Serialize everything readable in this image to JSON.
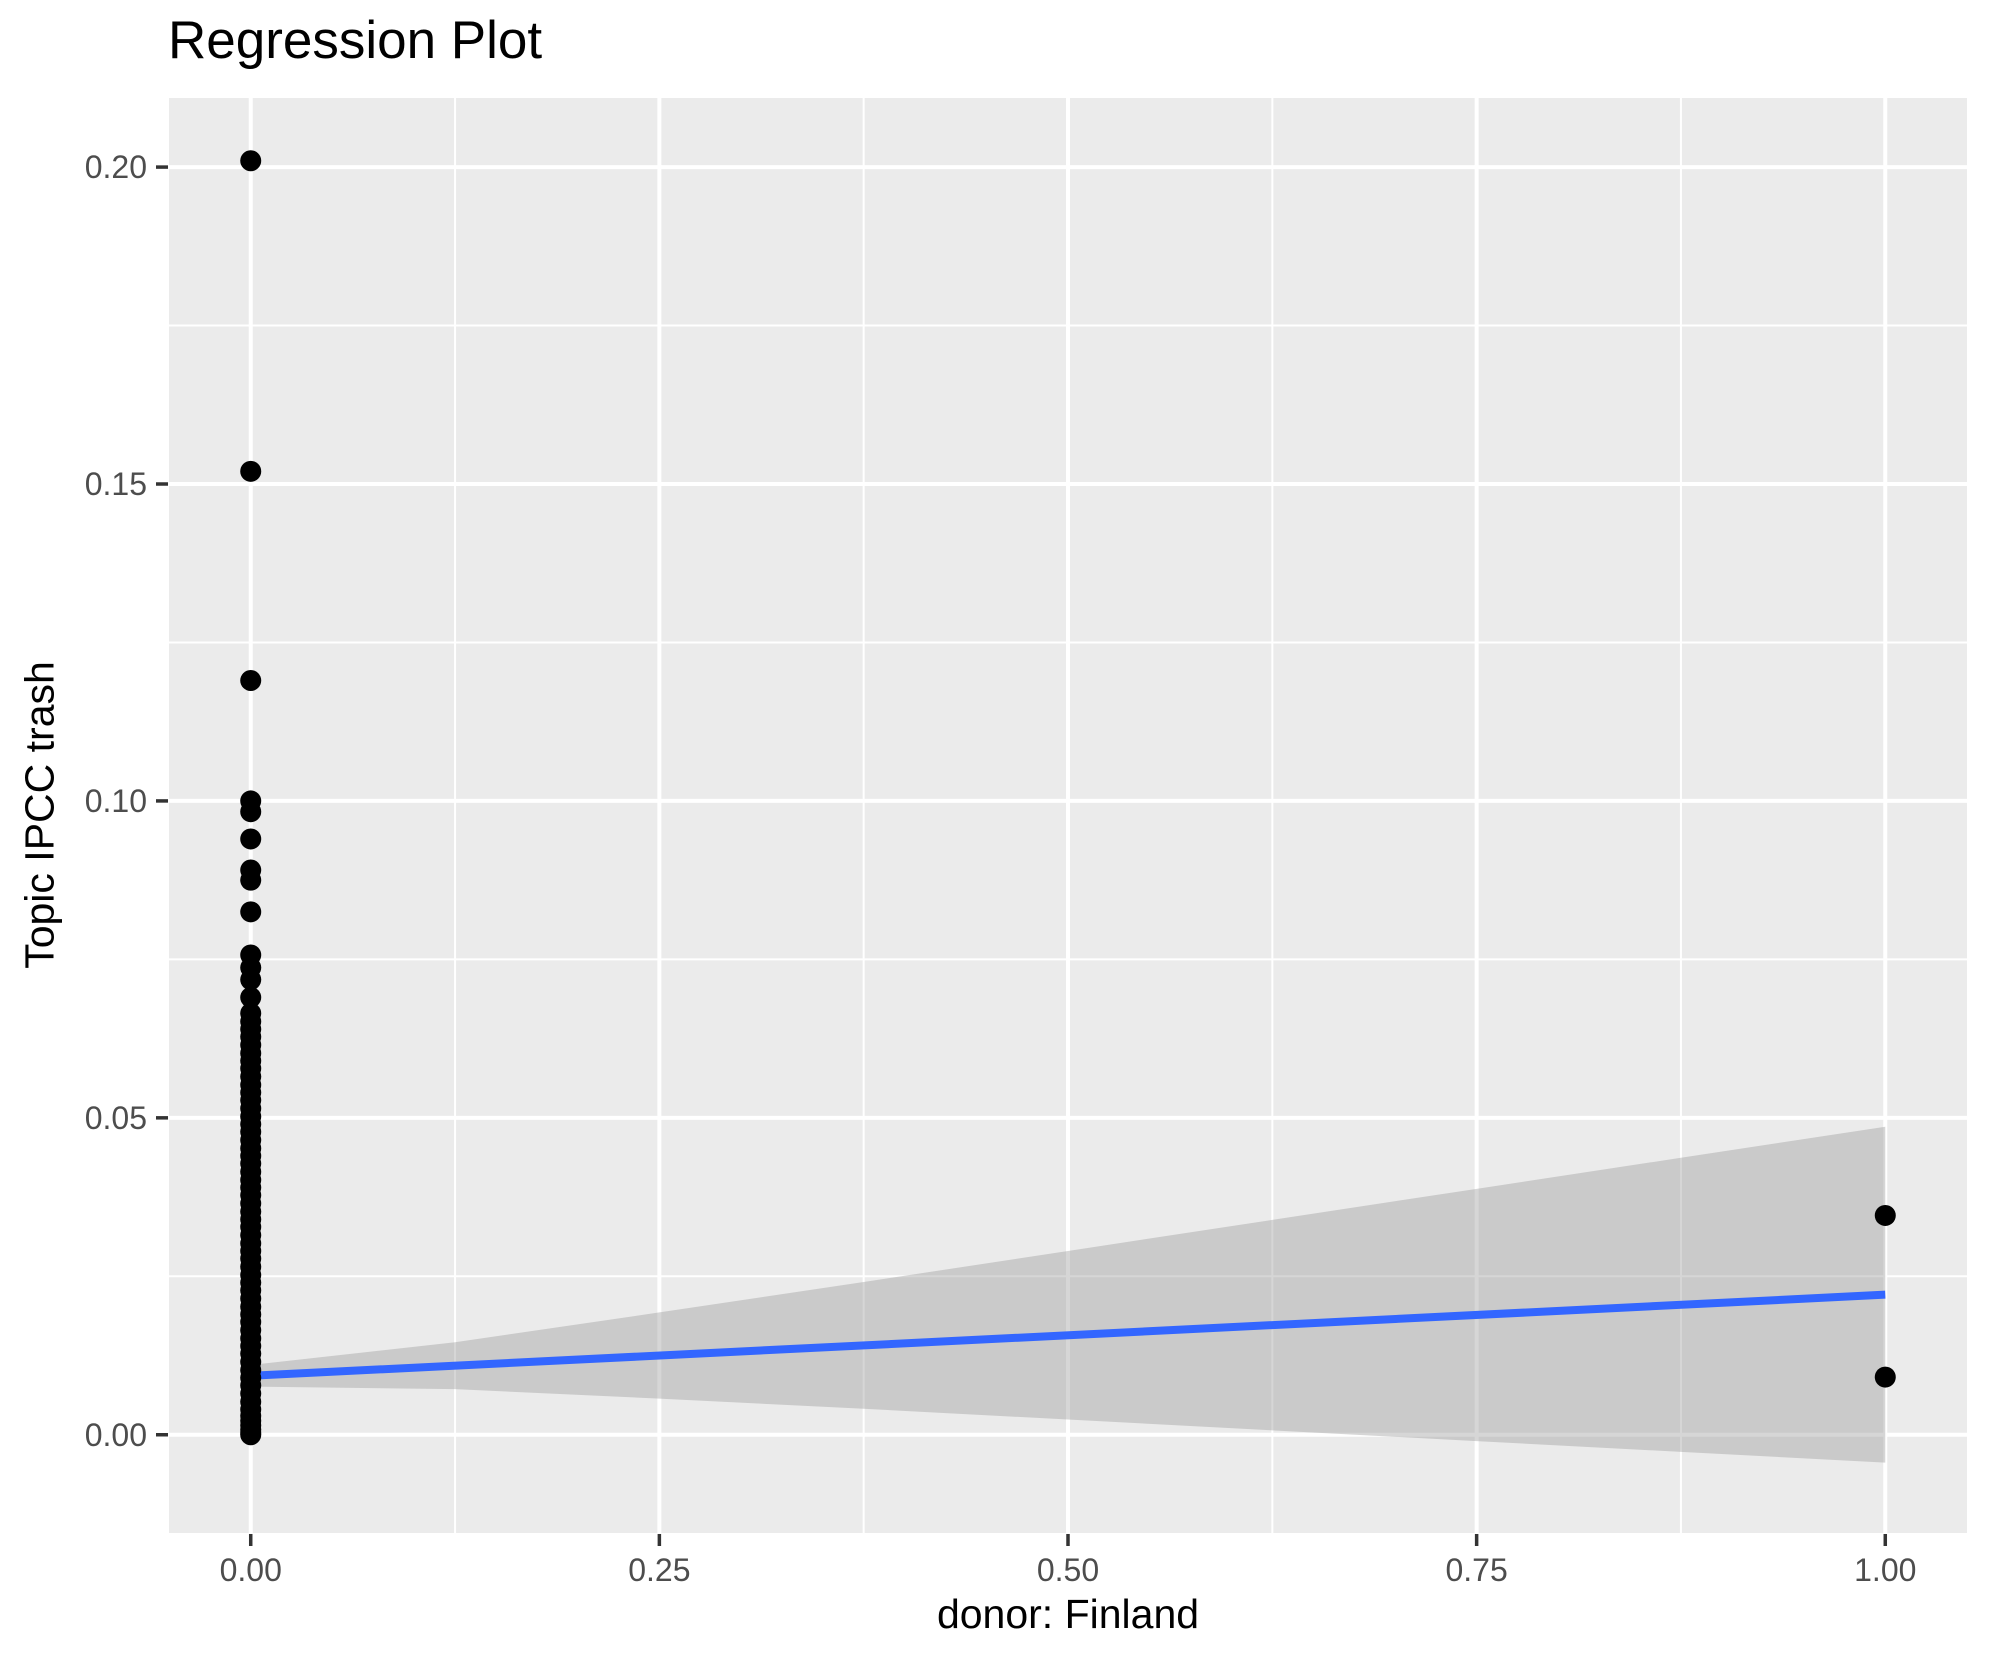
{
  "chart_data": {
    "type": "scatter",
    "title": "Regression Plot",
    "xlabel": "donor: Finland",
    "ylabel": "Topic IPCC trash",
    "xlim": [
      -0.05,
      1.05
    ],
    "ylim": [
      -0.0155,
      0.2109
    ],
    "grid": "on",
    "legend": "none",
    "x_ticks": {
      "values": [
        0,
        0.25,
        0.5,
        0.75,
        1.0
      ],
      "labels": [
        "0.00",
        "0.25",
        "0.50",
        "0.75",
        "1.00"
      ]
    },
    "y_ticks": {
      "values": [
        0,
        0.05,
        0.1,
        0.15,
        0.2
      ],
      "labels": [
        "0.00",
        "0.05",
        "0.10",
        "0.15",
        "0.20"
      ]
    },
    "points": [
      [
        0,
        0.201
      ],
      [
        0,
        0.152
      ],
      [
        0,
        0.119
      ],
      [
        0,
        0.1
      ],
      [
        0,
        0.0983
      ],
      [
        0,
        0.094
      ],
      [
        0,
        0.0891
      ],
      [
        0,
        0.0875
      ],
      [
        0,
        0.0825
      ],
      [
        0,
        0.0757
      ],
      [
        0,
        0.0737
      ],
      [
        0,
        0.0718
      ],
      [
        0,
        0.069
      ],
      [
        0,
        0.0665
      ],
      [
        0,
        0.0652
      ],
      [
        0,
        0.064
      ],
      [
        0,
        0.0628
      ],
      [
        0,
        0.0615
      ],
      [
        0,
        0.0602
      ],
      [
        0,
        0.059
      ],
      [
        0,
        0.0578
      ],
      [
        0,
        0.0565
      ],
      [
        0,
        0.0552
      ],
      [
        0,
        0.054
      ],
      [
        0,
        0.0528
      ],
      [
        0,
        0.0515
      ],
      [
        0,
        0.0502
      ],
      [
        0,
        0.049
      ],
      [
        0,
        0.0478
      ],
      [
        0,
        0.0465
      ],
      [
        0,
        0.0452
      ],
      [
        0,
        0.044
      ],
      [
        0,
        0.0428
      ],
      [
        0,
        0.0415
      ],
      [
        0,
        0.0402
      ],
      [
        0,
        0.039
      ],
      [
        0,
        0.0378
      ],
      [
        0,
        0.0365
      ],
      [
        0,
        0.0352
      ],
      [
        0,
        0.034
      ],
      [
        0,
        0.0328
      ],
      [
        0,
        0.0315
      ],
      [
        0,
        0.0302
      ],
      [
        0,
        0.029
      ],
      [
        0,
        0.0278
      ],
      [
        0,
        0.0265
      ],
      [
        0,
        0.0252
      ],
      [
        0,
        0.024
      ],
      [
        0,
        0.0228
      ],
      [
        0,
        0.0215
      ],
      [
        0,
        0.0202
      ],
      [
        0,
        0.019
      ],
      [
        0,
        0.0178
      ],
      [
        0,
        0.0165
      ],
      [
        0,
        0.0152
      ],
      [
        0,
        0.014
      ],
      [
        0,
        0.0128
      ],
      [
        0,
        0.0115
      ],
      [
        0,
        0.0102
      ],
      [
        0,
        0.009
      ],
      [
        0,
        0.0078
      ],
      [
        0,
        0.0065
      ],
      [
        0,
        0.0052
      ],
      [
        0,
        0.004
      ],
      [
        0,
        0.003
      ],
      [
        0,
        0.0022
      ],
      [
        0,
        0.0015
      ],
      [
        0,
        0.0008
      ],
      [
        0,
        0.0003
      ],
      [
        0,
        0.0
      ],
      [
        1,
        0.0346
      ],
      [
        1,
        0.0091
      ]
    ],
    "regression_line": {
      "x": [
        0,
        1
      ],
      "y": [
        0.0093,
        0.0221
      ]
    },
    "ci_band": {
      "x": [
        0,
        0.125,
        0.25,
        0.375,
        0.5,
        0.625,
        0.75,
        0.875,
        1
      ],
      "upper": [
        0.011,
        0.0146,
        0.0193,
        0.0241,
        0.029,
        0.0339,
        0.0388,
        0.0437,
        0.0486
      ],
      "lower": [
        0.0076,
        0.0072,
        0.0057,
        0.0041,
        0.0024,
        0.0007,
        -0.001,
        -0.0027,
        -0.0044
      ]
    },
    "colors": {
      "panel_bg": "#EBEBEB",
      "gridline": "#FFFFFF",
      "point": "#000000",
      "line": "#3366FF",
      "ci_fill": "rgba(153,153,153,0.40)",
      "tick_label": "#4D4D4D",
      "tick_mark": "#333333",
      "text": "#000000"
    }
  }
}
